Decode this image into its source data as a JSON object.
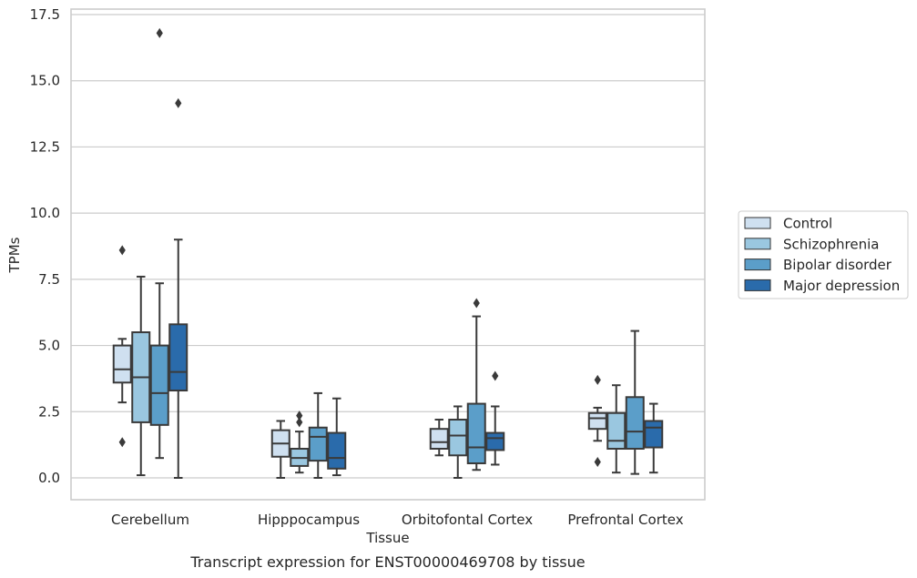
{
  "chart_data": {
    "type": "box",
    "title": "",
    "caption": "Transcript expression for ENST00000469708 by tissue",
    "xlabel": "Tissue",
    "ylabel": "TPMs",
    "ylim": [
      -0.8,
      17.6
    ],
    "yticks": [
      "0.0",
      "2.5",
      "5.0",
      "7.5",
      "10.0",
      "12.5",
      "15.0",
      "17.5"
    ],
    "ytick_values": [
      0,
      2.5,
      5,
      7.5,
      10,
      12.5,
      15,
      17.5
    ],
    "grid": "horizontal",
    "legend_position": "right",
    "categories": [
      "Cerebellum",
      "Hipppocampus",
      "Orbitofontal Cortex",
      "Prefrontal Cortex"
    ],
    "series": [
      {
        "name": "Control",
        "color": "#cfe0f0",
        "boxes": [
          {
            "whislo": 2.85,
            "q1": 3.6,
            "med": 4.1,
            "q3": 5.0,
            "whishi": 5.25,
            "fliers": [
              8.6,
              1.35
            ]
          },
          {
            "whislo": 0.0,
            "q1": 0.8,
            "med": 1.3,
            "q3": 1.8,
            "whishi": 2.15,
            "fliers": []
          },
          {
            "whislo": 0.85,
            "q1": 1.1,
            "med": 1.35,
            "q3": 1.85,
            "whishi": 2.2,
            "fliers": []
          },
          {
            "whislo": 1.4,
            "q1": 1.85,
            "med": 2.25,
            "q3": 2.45,
            "whishi": 2.65,
            "fliers": [
              3.7,
              0.6
            ]
          }
        ]
      },
      {
        "name": "Schizophrenia",
        "color": "#9ac7e0",
        "boxes": [
          {
            "whislo": 0.1,
            "q1": 2.1,
            "med": 3.8,
            "q3": 5.5,
            "whishi": 7.6,
            "fliers": []
          },
          {
            "whislo": 0.2,
            "q1": 0.45,
            "med": 0.75,
            "q3": 1.1,
            "whishi": 1.75,
            "fliers": [
              2.35,
              2.1
            ]
          },
          {
            "whislo": 0.0,
            "q1": 0.85,
            "med": 1.6,
            "q3": 2.2,
            "whishi": 2.7,
            "fliers": []
          },
          {
            "whislo": 0.2,
            "q1": 1.1,
            "med": 1.4,
            "q3": 2.45,
            "whishi": 3.5,
            "fliers": []
          }
        ]
      },
      {
        "name": "Bipolar disorder",
        "color": "#5b9ec9",
        "boxes": [
          {
            "whislo": 0.75,
            "q1": 2.0,
            "med": 3.2,
            "q3": 5.0,
            "whishi": 7.35,
            "fliers": [
              16.8
            ]
          },
          {
            "whislo": 0.0,
            "q1": 0.65,
            "med": 1.55,
            "q3": 1.9,
            "whishi": 3.2,
            "fliers": []
          },
          {
            "whislo": 0.3,
            "q1": 0.55,
            "med": 1.15,
            "q3": 2.8,
            "whishi": 6.1,
            "fliers": [
              6.6
            ]
          },
          {
            "whislo": 0.15,
            "q1": 1.1,
            "med": 1.75,
            "q3": 3.05,
            "whishi": 5.55,
            "fliers": []
          }
        ]
      },
      {
        "name": "Major depression",
        "color": "#2a6bab",
        "boxes": [
          {
            "whislo": 0.0,
            "q1": 3.3,
            "med": 4.0,
            "q3": 5.8,
            "whishi": 9.0,
            "fliers": [
              14.15
            ]
          },
          {
            "whislo": 0.1,
            "q1": 0.35,
            "med": 0.75,
            "q3": 1.7,
            "whishi": 3.0,
            "fliers": []
          },
          {
            "whislo": 0.5,
            "q1": 1.05,
            "med": 1.5,
            "q3": 1.7,
            "whishi": 2.7,
            "fliers": [
              3.85
            ]
          },
          {
            "whislo": 0.2,
            "q1": 1.15,
            "med": 1.9,
            "q3": 2.15,
            "whishi": 2.8,
            "fliers": []
          }
        ]
      }
    ]
  }
}
